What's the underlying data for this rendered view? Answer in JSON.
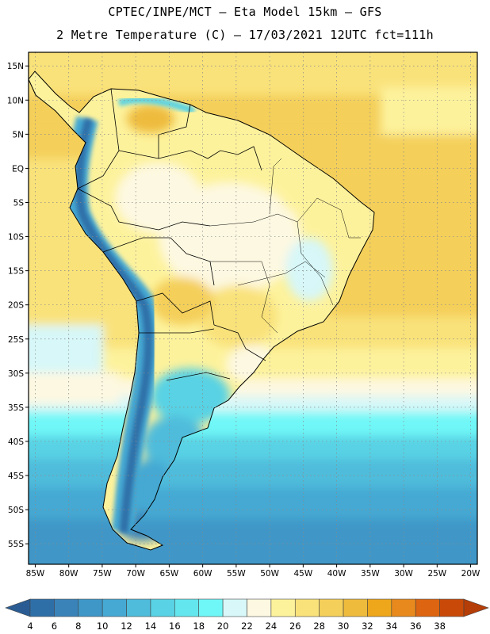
{
  "title": {
    "line1": "CPTEC/INPE/MCT –  Eta Model 15km – GFS",
    "line2": "2 Metre Temperature (C) – 17/03/2021 12UTC fct=111h"
  },
  "map": {
    "lon_range": [
      -86,
      -19
    ],
    "lat_range": [
      -58,
      17
    ],
    "lat_labels": [
      "15N",
      "10N",
      "5N",
      "EQ",
      "5S",
      "10S",
      "15S",
      "20S",
      "25S",
      "30S",
      "35S",
      "40S",
      "45S",
      "50S",
      "55S"
    ],
    "lat_values": [
      15,
      10,
      5,
      0,
      -5,
      -10,
      -15,
      -20,
      -25,
      -30,
      -35,
      -40,
      -45,
      -50,
      -55
    ],
    "lon_labels": [
      "85W",
      "80W",
      "75W",
      "70W",
      "65W",
      "60W",
      "55W",
      "50W",
      "45W",
      "40W",
      "35W",
      "30W",
      "25W",
      "20W"
    ],
    "lon_values": [
      -85,
      -80,
      -75,
      -70,
      -65,
      -60,
      -55,
      -50,
      -45,
      -40,
      -35,
      -30,
      -25,
      -20
    ],
    "grid": "dotted"
  },
  "colorbar": {
    "labels": [
      "4",
      "6",
      "8",
      "10",
      "12",
      "14",
      "16",
      "18",
      "20",
      "22",
      "24",
      "26",
      "28",
      "30",
      "32",
      "34",
      "36",
      "38"
    ],
    "colors": [
      "#2f6fa8",
      "#3a83b9",
      "#3f97c7",
      "#45a9d3",
      "#4fbcdb",
      "#58d2e4",
      "#63e6ee",
      "#6ff7f7",
      "#d7f7f8",
      "#fdf8e1",
      "#fdf29c",
      "#f9e27a",
      "#f4cf5a",
      "#eebb3c",
      "#eea61a",
      "#e8891d",
      "#dd6410",
      "#c94a08"
    ],
    "under_color": "#2a5c93",
    "over_color": "#b53d07"
  }
}
